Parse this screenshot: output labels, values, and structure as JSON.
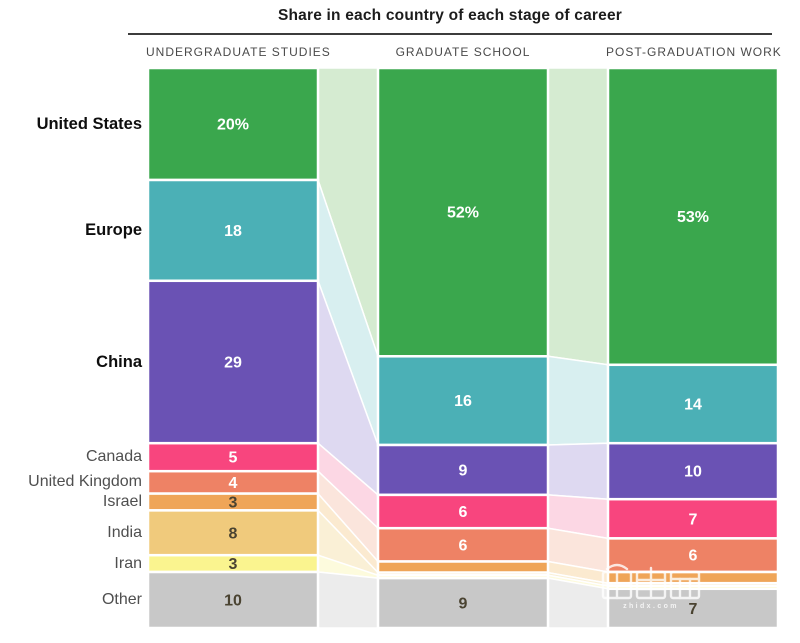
{
  "title": "Share in each country of each stage of career",
  "watermark": {
    "text": "智東西",
    "subtext": "zhidx.com"
  },
  "chart_data": {
    "type": "bar",
    "variant": "100%-stacked flow (alluvial) across three career stages",
    "title": "Share in each country of each stage of career",
    "stages": [
      "UNDERGRADUATE STUDIES",
      "GRADUATE SCHOOL",
      "POST-GRADUATION WORK"
    ],
    "categories": [
      "United States",
      "Europe",
      "China",
      "Canada",
      "United Kingdom",
      "Israel",
      "India",
      "Iran",
      "Other"
    ],
    "unit": "percent of respondents per stage",
    "legend_position": "left-row-labels",
    "grid": false,
    "series": [
      {
        "name": "United States",
        "values": [
          20,
          52,
          53
        ],
        "labels": [
          "20%",
          "52%",
          "53%"
        ],
        "color": "#3aa74d",
        "flow_color": "#d5ebd1",
        "label_dark": false,
        "row_label_bold": true
      },
      {
        "name": "Europe",
        "values": [
          18,
          16,
          14
        ],
        "labels": [
          "18",
          "16",
          "14"
        ],
        "color": "#4bb0b6",
        "flow_color": "#d8eff0",
        "label_dark": false,
        "row_label_bold": true
      },
      {
        "name": "China",
        "values": [
          29,
          9,
          10
        ],
        "labels": [
          "29",
          "9",
          "10"
        ],
        "color": "#6a52b4",
        "flow_color": "#ded9f1",
        "label_dark": false,
        "row_label_bold": true
      },
      {
        "name": "Canada",
        "values": [
          5,
          6,
          7
        ],
        "labels": [
          "5",
          "6",
          "7"
        ],
        "color": "#f8457e",
        "flow_color": "#fcd7e4",
        "label_dark": false,
        "row_label_bold": false
      },
      {
        "name": "United Kingdom",
        "values": [
          4,
          6,
          6
        ],
        "labels": [
          "4",
          "6",
          "6"
        ],
        "color": "#ee8265",
        "flow_color": "#fbe5dc",
        "label_dark": false,
        "row_label_bold": false
      },
      {
        "name": "Israel",
        "values": [
          3,
          2,
          2
        ],
        "labels": [
          "3",
          "",
          ""
        ],
        "color": "#efa558",
        "flow_color": "#fbead0",
        "label_dark": true,
        "row_label_bold": false
      },
      {
        "name": "India",
        "values": [
          8,
          0.5,
          0.5
        ],
        "labels": [
          "8",
          "",
          ""
        ],
        "color": "#f0ca7c",
        "flow_color": "#faf0d6",
        "label_dark": true,
        "row_label_bold": false
      },
      {
        "name": "Iran",
        "values": [
          3,
          0.5,
          0.5
        ],
        "labels": [
          "3",
          "",
          ""
        ],
        "color": "#faf48f",
        "flow_color": "#fdfbdd",
        "label_dark": true,
        "row_label_bold": false
      },
      {
        "name": "Other",
        "values": [
          10,
          9,
          7
        ],
        "labels": [
          "10",
          "9",
          "7"
        ],
        "color": "#c8c8c8",
        "flow_color": "#ececec",
        "label_dark": true,
        "row_label_bold": false
      }
    ]
  }
}
